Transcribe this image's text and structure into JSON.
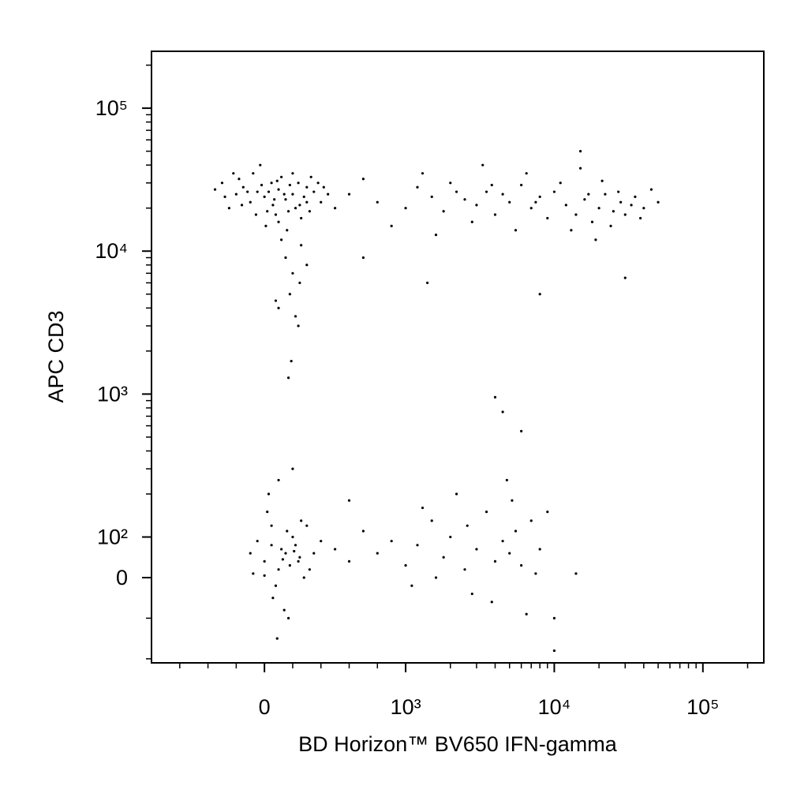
{
  "chart_data": {
    "type": "scatter",
    "x_label": "BD Horizon™ BV650 IFN-gamma",
    "y_label": "APC CD3",
    "xscale": "biexponential",
    "yscale": "biexponential",
    "color": "#000000",
    "xlim": [
      -800,
      257000
    ],
    "ylim": [
      -210,
      250000
    ],
    "xticks": [
      0,
      {
        "value": 1000,
        "label": "10³"
      },
      {
        "value": 10000,
        "label": "10⁴"
      },
      {
        "value": 100000,
        "label": "10⁵"
      }
    ],
    "yticks": [
      0,
      {
        "value": 100,
        "label": "10²"
      },
      {
        "value": 1000,
        "label": "10³"
      },
      {
        "value": 10000,
        "label": "10⁴"
      },
      {
        "value": 100000,
        "label": "10⁵"
      }
    ],
    "xminor": [
      -600,
      -400,
      -200,
      200,
      400,
      600,
      800,
      2000,
      3000,
      4000,
      5000,
      6000,
      7000,
      8000,
      9000,
      20000,
      30000,
      40000,
      50000,
      60000,
      70000,
      80000,
      90000,
      200000
    ],
    "yminor": [
      -200,
      -100,
      200,
      300,
      400,
      500,
      600,
      700,
      800,
      900,
      2000,
      3000,
      4000,
      5000,
      6000,
      7000,
      8000,
      9000,
      20000,
      30000,
      40000,
      50000,
      60000,
      70000,
      80000,
      90000,
      200000
    ],
    "x": [
      -300,
      -200,
      -150,
      -100,
      -50,
      0,
      50,
      100,
      150,
      200,
      250,
      300,
      -250,
      -180,
      -80,
      20,
      80,
      120,
      180,
      220,
      280,
      350,
      400,
      -120,
      -20,
      60,
      140,
      240,
      320,
      380,
      -350,
      -60,
      10,
      100,
      160,
      260,
      450,
      500,
      -280,
      -160,
      30,
      90,
      200,
      300,
      420,
      -220,
      -30,
      70,
      170,
      330,
      150,
      200,
      180,
      250,
      100,
      220,
      300,
      120,
      260,
      80,
      240,
      190,
      170,
      600,
      800,
      1000,
      1200,
      1500,
      1800,
      2000,
      2500,
      3000,
      3500,
      4000,
      4500,
      5000,
      6000,
      7000,
      8000,
      9000,
      10000,
      12000,
      14000,
      16000,
      18000,
      20000,
      22000,
      25000,
      28000,
      30000,
      35000,
      40000,
      45000,
      700,
      900,
      1300,
      1600,
      2200,
      2800,
      3300,
      3800,
      5500,
      6500,
      7500,
      11000,
      13000,
      15000,
      17000,
      19000,
      21000,
      24000,
      27000,
      33000,
      38000,
      50000,
      1400,
      8000,
      30000,
      15000,
      700,
      4000,
      4500,
      6000,
      -100,
      -50,
      0,
      50,
      100,
      150,
      200,
      250,
      300,
      -80,
      20,
      80,
      120,
      180,
      220,
      280,
      350,
      400,
      60,
      140,
      160,
      240,
      320,
      30,
      100,
      200,
      90,
      170,
      0,
      130,
      210,
      260,
      50,
      500,
      600,
      700,
      800,
      900,
      1000,
      1200,
      1500,
      1800,
      2000,
      2500,
      3000,
      3500,
      4000,
      4500,
      5000,
      5500,
      6000,
      7000,
      8000,
      9000,
      600,
      1100,
      1600,
      2200,
      2800,
      3800,
      4800,
      6500,
      7500,
      1300,
      2600,
      5200,
      10000,
      10000,
      14000
    ],
    "values": [
      30000,
      25000,
      28000,
      22000,
      26000,
      24000,
      30000,
      27000,
      23000,
      25000,
      21000,
      28000,
      20000,
      32000,
      35000,
      19000,
      18000,
      33000,
      29000,
      20000,
      24000,
      26000,
      22000,
      26000,
      29000,
      21000,
      25000,
      30000,
      19000,
      30000,
      27000,
      18000,
      15000,
      16000,
      14000,
      17000,
      25000,
      20000,
      24000,
      21000,
      26000,
      31000,
      35000,
      22000,
      28000,
      35000,
      40000,
      23000,
      19000,
      33000,
      9000,
      7000,
      5000,
      6000,
      4000,
      3500,
      8000,
      12000,
      11000,
      4500,
      3000,
      1700,
      1300,
      25000,
      22000,
      20000,
      28000,
      24000,
      19000,
      30000,
      23000,
      21000,
      26000,
      18000,
      25000,
      22000,
      29000,
      20000,
      24000,
      17000,
      26000,
      21000,
      18000,
      23000,
      16000,
      20000,
      25000,
      19000,
      22000,
      18000,
      24000,
      20000,
      27000,
      32000,
      15000,
      35000,
      13000,
      26000,
      16000,
      40000,
      29000,
      14000,
      35000,
      22000,
      30000,
      14000,
      38000,
      25000,
      12000,
      31000,
      15000,
      26000,
      21000,
      17000,
      22000,
      6000,
      5000,
      6500,
      50000,
      9000,
      950,
      750,
      550,
      60,
      90,
      40,
      80,
      20,
      60,
      100,
      50,
      120,
      10,
      150,
      -20,
      70,
      30,
      80,
      0,
      60,
      90,
      -50,
      -80,
      110,
      40,
      20,
      200,
      250,
      300,
      -150,
      -100,
      5,
      45,
      65,
      130,
      120,
      70,
      40,
      110,
      60,
      90,
      30,
      80,
      130,
      50,
      100,
      20,
      70,
      150,
      40,
      90,
      60,
      110,
      30,
      130,
      70,
      150,
      180,
      -20,
      0,
      200,
      -40,
      -60,
      250,
      -90,
      10,
      160,
      120,
      180,
      -100,
      -180,
      10
    ]
  }
}
